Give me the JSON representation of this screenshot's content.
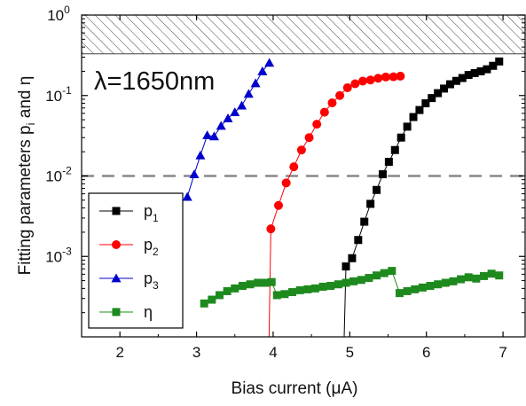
{
  "chart_data": {
    "type": "scatter",
    "title": "",
    "annotation": "λ=1650nm",
    "xlabel": "Bias current (μA)",
    "ylabel_main": "Fitting parameters p",
    "ylabel_sub": "i",
    "ylabel_tail": " and η",
    "xlim": [
      1.5,
      7.3
    ],
    "ylim": [
      0.0001,
      1.0
    ],
    "yscale": "log",
    "x_ticks": [
      "2",
      "3",
      "4",
      "5",
      "6",
      "7"
    ],
    "x_tick_values": [
      2,
      3,
      4,
      5,
      6,
      7
    ],
    "y_ticks": [
      {
        "base": "10",
        "exp": "-3",
        "value": 0.001
      },
      {
        "base": "10",
        "exp": "-2",
        "value": 0.01
      },
      {
        "base": "10",
        "exp": "-1",
        "value": 0.1
      },
      {
        "base": "10",
        "exp": "0",
        "value": 1.0
      }
    ],
    "hatched_region": {
      "from": 0.33,
      "to": 1.0
    },
    "reference_line": {
      "y": 0.01,
      "style": "dashed",
      "color": "#888888"
    },
    "legend": {
      "placement": "bottom-left"
    },
    "series": [
      {
        "name": "p",
        "name_sub": "1",
        "color": "#000000",
        "marker": "square",
        "x": [
          4.95,
          5.03,
          5.11,
          5.19,
          5.27,
          5.35,
          5.43,
          5.51,
          5.59,
          5.67,
          5.75,
          5.83,
          5.91,
          5.99,
          6.07,
          6.15,
          6.23,
          6.31,
          6.39,
          6.47,
          6.55,
          6.63,
          6.71,
          6.79,
          6.87,
          6.95
        ],
        "y": [
          0.00075,
          0.00095,
          0.0016,
          0.0027,
          0.0045,
          0.0067,
          0.0105,
          0.015,
          0.021,
          0.03,
          0.041,
          0.054,
          0.066,
          0.08,
          0.093,
          0.107,
          0.122,
          0.138,
          0.152,
          0.165,
          0.18,
          0.19,
          0.2,
          0.212,
          0.234,
          0.265
        ]
      },
      {
        "name": "p",
        "name_sub": "2",
        "color": "#ff0000",
        "marker": "circle",
        "x": [
          3.97,
          4.07,
          4.17,
          4.27,
          4.37,
          4.47,
          4.57,
          4.67,
          4.77,
          4.87,
          4.97,
          5.07,
          5.17,
          5.27,
          5.37,
          5.47,
          5.57,
          5.66
        ],
        "y": [
          0.0022,
          0.0043,
          0.0082,
          0.013,
          0.021,
          0.03,
          0.044,
          0.062,
          0.081,
          0.1,
          0.125,
          0.14,
          0.151,
          0.156,
          0.164,
          0.17,
          0.171,
          0.174
        ]
      },
      {
        "name": "p",
        "name_sub": "3",
        "color": "#0000cc",
        "marker": "triangle",
        "x": [
          2.88,
          2.97,
          3.05,
          3.14,
          3.23,
          3.32,
          3.41,
          3.5,
          3.59,
          3.68,
          3.77,
          3.86,
          3.95
        ],
        "y": [
          0.0055,
          0.0105,
          0.018,
          0.032,
          0.031,
          0.042,
          0.052,
          0.062,
          0.075,
          0.105,
          0.142,
          0.2,
          0.255
        ]
      },
      {
        "name": "η",
        "name_sub": "",
        "color": "#1e8a1e",
        "marker": "square",
        "x": [
          3.1,
          3.2,
          3.3,
          3.4,
          3.5,
          3.6,
          3.7,
          3.8,
          3.9,
          3.98,
          4.05,
          4.15,
          4.25,
          4.35,
          4.45,
          4.55,
          4.65,
          4.75,
          4.85,
          4.95,
          5.05,
          5.15,
          5.25,
          5.35,
          5.45,
          5.55,
          5.65,
          5.75,
          5.85,
          5.95,
          6.05,
          6.15,
          6.25,
          6.35,
          6.45,
          6.55,
          6.65,
          6.75,
          6.85,
          6.95
        ],
        "y": [
          0.00026,
          0.00029,
          0.00033,
          0.00037,
          0.0004,
          0.00043,
          0.00045,
          0.00047,
          0.00047,
          0.00048,
          0.00033,
          0.00034,
          0.00036,
          0.00038,
          0.00039,
          0.0004,
          0.00042,
          0.00043,
          0.00045,
          0.00047,
          0.00049,
          0.00051,
          0.00054,
          0.00058,
          0.00062,
          0.00066,
          0.00035,
          0.00037,
          0.00039,
          0.00041,
          0.00043,
          0.00045,
          0.00047,
          0.00049,
          0.00052,
          0.00055,
          0.00053,
          0.00057,
          0.00061,
          0.00058
        ]
      }
    ]
  }
}
